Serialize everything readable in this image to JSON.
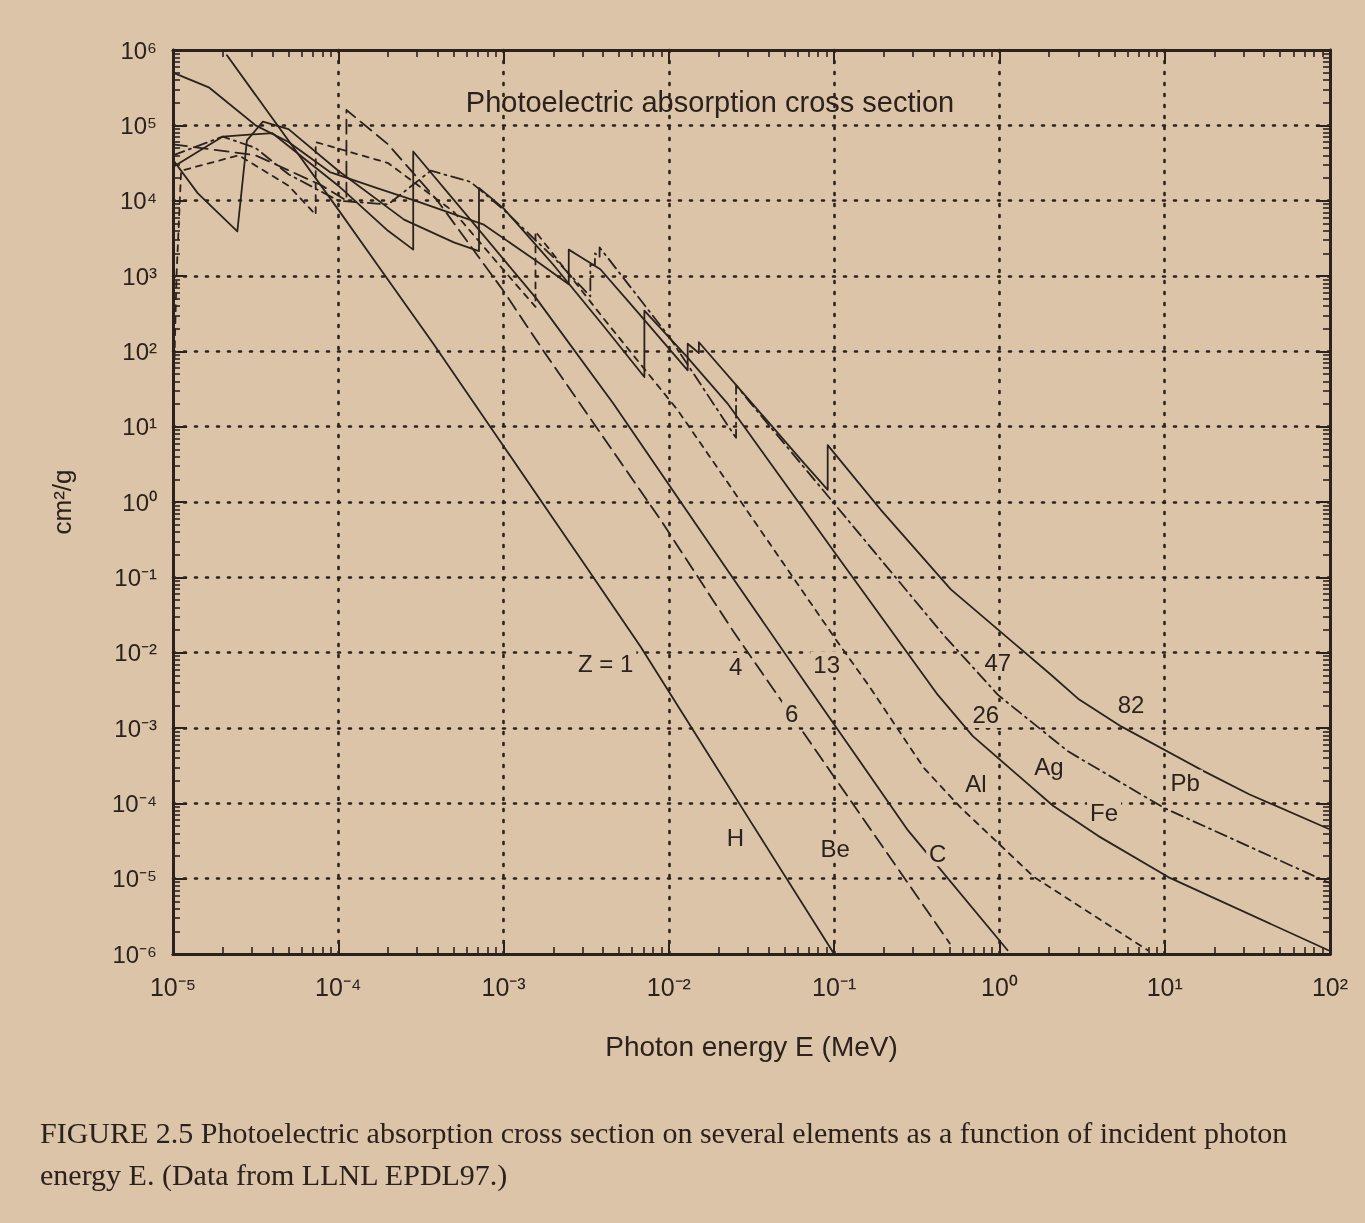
{
  "chart_data": {
    "type": "line",
    "title": "Photoelectric absorption cross section",
    "xlabel": "Photon energy E (MeV)",
    "ylabel": "cm²/g",
    "log": "xy",
    "grid": true,
    "marker": "none",
    "xlim": [
      1e-05,
      100
    ],
    "ylim": [
      1e-06,
      1000000
    ],
    "xticks": [
      {
        "value": 1e-05,
        "label": "10⁻⁵"
      },
      {
        "value": 0.0001,
        "label": "10⁻⁴"
      },
      {
        "value": 0.001,
        "label": "10⁻³"
      },
      {
        "value": 0.01,
        "label": "10⁻²"
      },
      {
        "value": 0.1,
        "label": "10⁻¹"
      },
      {
        "value": 1,
        "label": "10⁰"
      },
      {
        "value": 10,
        "label": "10¹"
      },
      {
        "value": 100,
        "label": "10²"
      }
    ],
    "yticks": [
      {
        "value": 1e-06,
        "label": "10⁻⁶"
      },
      {
        "value": 1e-05,
        "label": "10⁻⁵"
      },
      {
        "value": 0.0001,
        "label": "10⁻⁴"
      },
      {
        "value": 0.001,
        "label": "10⁻³"
      },
      {
        "value": 0.01,
        "label": "10⁻²"
      },
      {
        "value": 0.1,
        "label": "10⁻¹"
      },
      {
        "value": 1,
        "label": "10⁰"
      },
      {
        "value": 10,
        "label": "10¹"
      },
      {
        "value": 100,
        "label": "10²"
      },
      {
        "value": 1000,
        "label": "10³"
      },
      {
        "value": 10000,
        "label": "10⁴"
      },
      {
        "value": 100000,
        "label": "10⁵"
      },
      {
        "value": 1000000,
        "label": "10⁶"
      }
    ],
    "series": [
      {
        "color": "#2b221d",
        "line_style": "solid",
        "x": [
          2.12e-05,
          0.0001,
          0.000376,
          0.001,
          0.00316,
          0.00675,
          0.0316,
          0.1
        ],
        "values": [
          850000,
          7600,
          126,
          5.5,
          0.138,
          0.012,
          5.5e-05,
          1e-06
        ]
      },
      {
        "color": "#2b221d",
        "line_style": "dashed",
        "x": [
          1e-05,
          3.16e-05,
          7.9e-05,
          0.000112,
          0.000112,
          0.0002,
          0.000398,
          0.001,
          0.00174,
          0.0089,
          0.0247,
          0.1,
          0.501
        ],
        "values": [
          56000,
          40000,
          16000,
          10000,
          160000,
          56000,
          10000,
          631,
          102,
          0.582,
          0.0188,
          0.000224,
          1.38e-06
        ]
      },
      {
        "color": "#2b221d",
        "line_style": "solid",
        "x": [
          1e-05,
          2e-05,
          3.98e-05,
          0.0001,
          0.0002,
          0.000284,
          0.000284,
          0.00063,
          0.00158,
          0.0046,
          0.0251,
          0.0752,
          0.279,
          1.12
        ],
        "values": [
          28000,
          71000,
          79000,
          15800,
          3980,
          2240,
          45000,
          5600,
          501,
          20.4,
          0.0891,
          0.00275,
          4.4e-05,
          1.12e-06
        ]
      },
      {
        "color": "#2b221d",
        "line_style": "dotted",
        "x": [
          1e-05,
          1.05e-05,
          1.12e-05,
          2.5e-05,
          5e-05,
          7.3e-05,
          7.3e-05,
          0.0002,
          0.0005,
          0.001,
          0.00156,
          0.00156,
          0.00398,
          0.0113,
          0.0316,
          0.105,
          0.16,
          0.349,
          0.585,
          1.62,
          7.9
        ],
        "values": [
          12.6,
          1000,
          25000,
          40000,
          15800,
          6500,
          60000,
          31600,
          7100,
          1200,
          389,
          3890,
          282,
          16.6,
          0.631,
          0.0138,
          0.0038,
          0.000295,
          8.7e-05,
          1.05e-05,
          1.12e-06
        ]
      },
      {
        "color": "#2b221d",
        "line_style": "solid",
        "x": [
          1e-05,
          1.41e-05,
          2.45e-05,
          2.8e-05,
          3.5e-05,
          5e-05,
          0.0001,
          0.00025,
          0.0005,
          0.00071,
          0.00071,
          0.001,
          0.002,
          0.00398,
          0.00711,
          0.00711,
          0.0126,
          0.0226,
          0.1,
          0.424,
          0.69,
          2.11,
          3.95,
          10.5,
          97.7
        ],
        "values": [
          35000,
          12600,
          3900,
          63000,
          112000,
          89000,
          25000,
          5600,
          2800,
          2140,
          14800,
          7900,
          1410,
          224,
          45.7,
          347,
          89,
          20.4,
          0.219,
          0.00275,
          0.00078,
          9.3e-05,
          3.7e-05,
          1.05e-05,
          1.12e-06
        ]
      },
      {
        "color": "#2b221d",
        "line_style": "dashdot",
        "x": [
          1e-05,
          2e-05,
          3.16e-05,
          5e-05,
          0.0001,
          0.0002,
          0.000363,
          0.00063,
          0.001,
          0.002,
          0.00335,
          0.00335,
          0.00357,
          0.00357,
          0.00381,
          0.00381,
          0.01,
          0.0255,
          0.0255,
          0.0313,
          0.461,
          0.98,
          2.6,
          9.9,
          97.7
        ],
        "values": [
          40000,
          71000,
          50000,
          22400,
          10000,
          8900,
          25000,
          17800,
          7600,
          1780,
          537,
          1410,
          1410,
          2000,
          1780,
          2400,
          158,
          7.1,
          35.5,
          20.4,
          0.017,
          0.00275,
          0.00049,
          8.7e-05,
          8.9e-06
        ]
      },
      {
        "color": "#2b221d",
        "line_style": "solid",
        "x": [
          1e-05,
          1.66e-05,
          3.16e-05,
          5e-05,
          8.9e-05,
          0.00017,
          0.0003,
          0.00076,
          0.00158,
          0.00248,
          0.00248,
          0.00385,
          0.0063,
          0.013,
          0.013,
          0.0152,
          0.0152,
          0.0316,
          0.0631,
          0.0914,
          0.0914,
          0.191,
          0.508,
          2.05,
          2.99,
          5.45,
          17.1,
          32.4,
          97.7
        ],
        "values": [
          500000,
          316000,
          100000,
          60000,
          24000,
          14800,
          9800,
          4800,
          1580,
          776,
          2240,
          1230,
          355,
          56,
          126,
          95,
          132,
          20.9,
          3.63,
          1.45,
          5.7,
          0.794,
          0.0692,
          0.0051,
          0.00245,
          0.00105,
          0.00027,
          0.000132,
          4.6e-05
        ]
      }
    ],
    "annotations": [
      {
        "text": "Z = 1",
        "x": 0.00675,
        "y": 0.012
      },
      {
        "text": "4",
        "x": 0.0247,
        "y": 0.0188
      },
      {
        "text": "13",
        "x": 0.105,
        "y": 0.0138
      },
      {
        "text": "47",
        "x": 0.461,
        "y": 0.017
      },
      {
        "text": "6",
        "x": 0.0752,
        "y": 0.00275
      },
      {
        "text": "26",
        "x": 0.424,
        "y": 0.00275
      },
      {
        "text": "82",
        "x": 2.99,
        "y": 0.00245
      },
      {
        "text": "H",
        "x": 0.0316,
        "y": 5.5e-05
      },
      {
        "text": "Be",
        "x": 0.1,
        "y": 0.000224
      },
      {
        "text": "C",
        "x": 0.279,
        "y": 4.4e-05
      },
      {
        "text": "Al",
        "x": 0.349,
        "y": 0.000295
      },
      {
        "text": "Fe",
        "x": 3.95,
        "y": 3.7e-05
      },
      {
        "text": "Ag",
        "x": 2.6,
        "y": 0.00049
      },
      {
        "text": "Pb",
        "x": 17.1,
        "y": 0.00027
      },
      "FIGURE 2.5 Photoelectric absorption cross section on several elements as a function of incident photon energy E. (Data from LLNL EPDL97.)"
    ]
  }
}
